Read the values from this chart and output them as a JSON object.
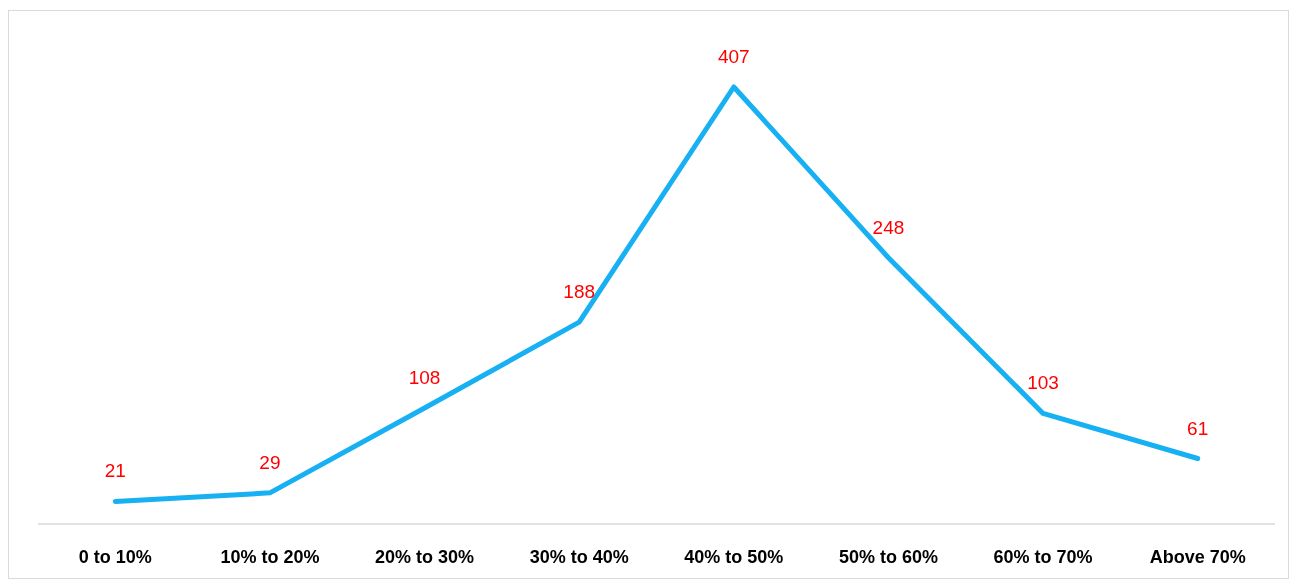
{
  "chart_data": {
    "type": "line",
    "categories": [
      "0 to 10%",
      "10% to 20%",
      "20% to 30%",
      "30% to 40%",
      "40% to 50%",
      "50% to 60%",
      "60% to 70%",
      "Above 70%"
    ],
    "series": [
      {
        "color": "#17b0f3",
        "values": [
          21,
          29,
          108,
          188,
          407,
          248,
          103,
          61
        ]
      }
    ],
    "data_labels": true,
    "marker": "none",
    "line_style": "solid"
  }
}
